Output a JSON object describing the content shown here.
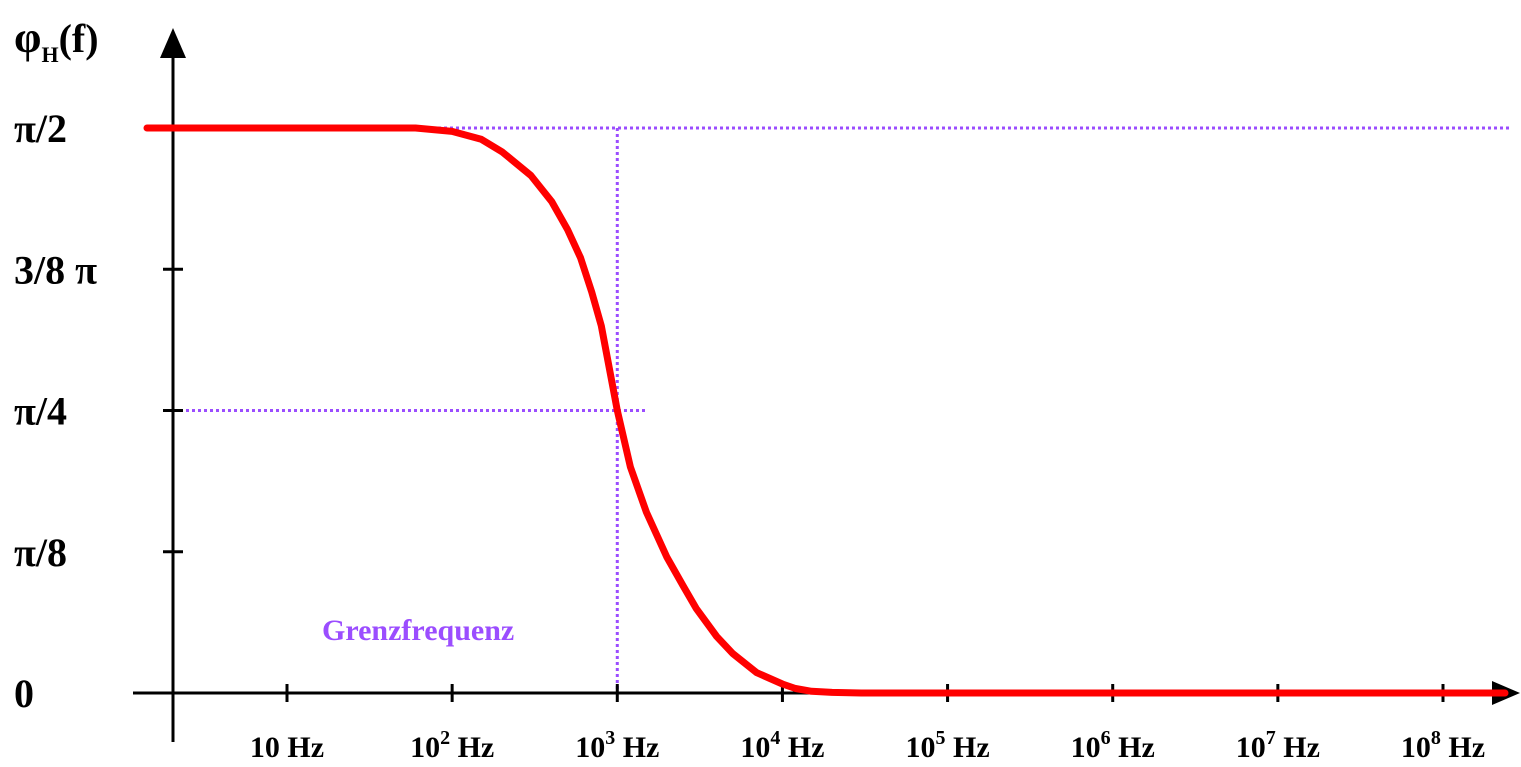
{
  "chart_data": {
    "type": "line",
    "ylabel": {
      "base": "φ",
      "sub": "H",
      "rest": "(f)"
    },
    "x_scale": "log",
    "xlim": [
      3,
      300000000
    ],
    "ylim_units_of_pi": [
      0,
      0.5
    ],
    "y_ticks": [
      {
        "value": 0,
        "label": "0"
      },
      {
        "value": 0.125,
        "label": "π/8"
      },
      {
        "value": 0.25,
        "label": "π/4"
      },
      {
        "value": 0.375,
        "label": "3/8 π"
      },
      {
        "value": 0.5,
        "label": "π/2"
      }
    ],
    "x_ticks": [
      {
        "value": 10,
        "base": "10 Hz",
        "exp": ""
      },
      {
        "value": 100,
        "base": "10",
        "exp": "2",
        "unit": " Hz"
      },
      {
        "value": 1000,
        "base": "10",
        "exp": "3",
        "unit": " Hz"
      },
      {
        "value": 10000,
        "base": "10",
        "exp": "4",
        "unit": " Hz"
      },
      {
        "value": 100000,
        "base": "10",
        "exp": "5",
        "unit": " Hz"
      },
      {
        "value": 1000000,
        "base": "10",
        "exp": "6",
        "unit": " Hz"
      },
      {
        "value": 10000000,
        "base": "10",
        "exp": "7",
        "unit": " Hz"
      },
      {
        "value": 100000000,
        "base": "10",
        "exp": "8",
        "unit": " Hz"
      }
    ],
    "series": [
      {
        "color": "#ff0000",
        "cutoff_frequency_hz": 1000,
        "x": [
          3,
          10,
          30,
          60,
          100,
          150,
          200,
          300,
          400,
          500,
          600,
          700,
          800,
          1000,
          1200,
          1500,
          2000,
          2500,
          3000,
          4000,
          5000,
          7000,
          10000,
          12000,
          15000,
          20000,
          30000,
          100000,
          1000000,
          10000000,
          300000000
        ],
        "y_units_of_pi": [
          0.5,
          0.5,
          0.5,
          0.5,
          0.497,
          0.49,
          0.479,
          0.458,
          0.435,
          0.41,
          0.385,
          0.355,
          0.325,
          0.25,
          0.2,
          0.16,
          0.12,
          0.095,
          0.075,
          0.05,
          0.035,
          0.018,
          0.008,
          0.004,
          0.0015,
          0.0005,
          0,
          0,
          0,
          0,
          0
        ]
      }
    ],
    "reference_lines": {
      "color": "#9b4dff",
      "annotation": "Grenzfrequenz",
      "cutoff_x": 1000,
      "level_y_units_of_pi": 0.25,
      "top_y_units_of_pi": 0.5
    },
    "grid": false,
    "legend": "none"
  }
}
